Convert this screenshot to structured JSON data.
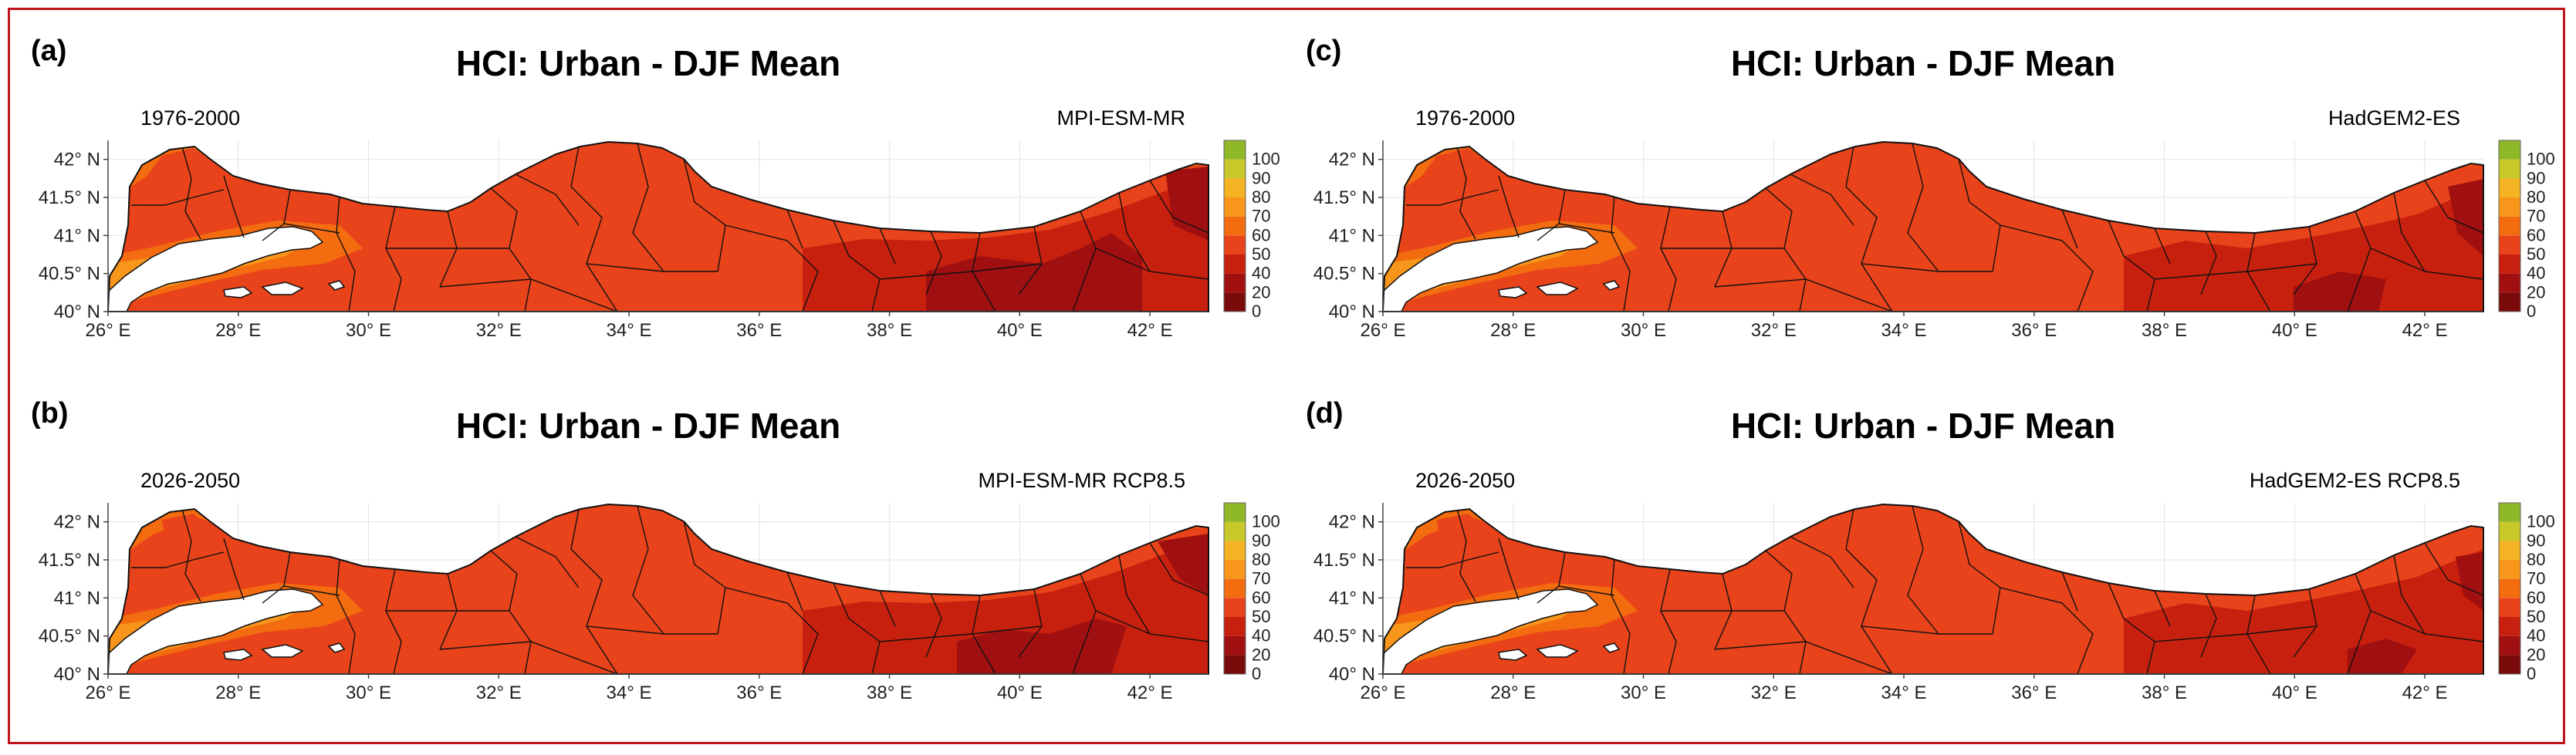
{
  "colors": {
    "frame": "#c0141c",
    "sea": "#ffffff",
    "border": "#111111",
    "colorbar": [
      "#7a0a0a",
      "#a01010",
      "#c8200f",
      "#e8431a",
      "#f46c10",
      "#f7961b",
      "#f3b322",
      "#c8c82a",
      "#8fb828"
    ]
  },
  "colorbar_ticks": [
    "0",
    "20",
    "40",
    "50",
    "60",
    "70",
    "80",
    "90",
    "100"
  ],
  "panels": [
    {
      "letter": "(a)",
      "title": "HCI: Urban - DJF Mean",
      "period": "1976-2000",
      "model": "MPI-ESM-MR",
      "variant": "A"
    },
    {
      "letter": "(b)",
      "title": "HCI: Urban - DJF Mean",
      "period": "2026-2050",
      "model": "MPI-ESM-MR RCP8.5",
      "variant": "B"
    },
    {
      "letter": "(c)",
      "title": "HCI: Urban - DJF Mean",
      "period": "1976-2000",
      "model": "HadGEM2-ES",
      "variant": "C"
    },
    {
      "letter": "(d)",
      "title": "HCI: Urban - DJF Mean",
      "period": "2026-2050",
      "model": "HadGEM2-ES RCP8.5",
      "variant": "D"
    }
  ],
  "map_axes": {
    "lon_ticks": [
      "26° E",
      "28° E",
      "30° E",
      "32° E",
      "34° E",
      "36° E",
      "38° E",
      "40° E",
      "42° E"
    ],
    "lat_ticks": [
      "40° N",
      "40.5° N",
      "41° N",
      "41.5° N",
      "42° N"
    ],
    "lon_range": [
      26,
      42.9
    ],
    "lat_range": [
      40,
      42.25
    ]
  }
}
